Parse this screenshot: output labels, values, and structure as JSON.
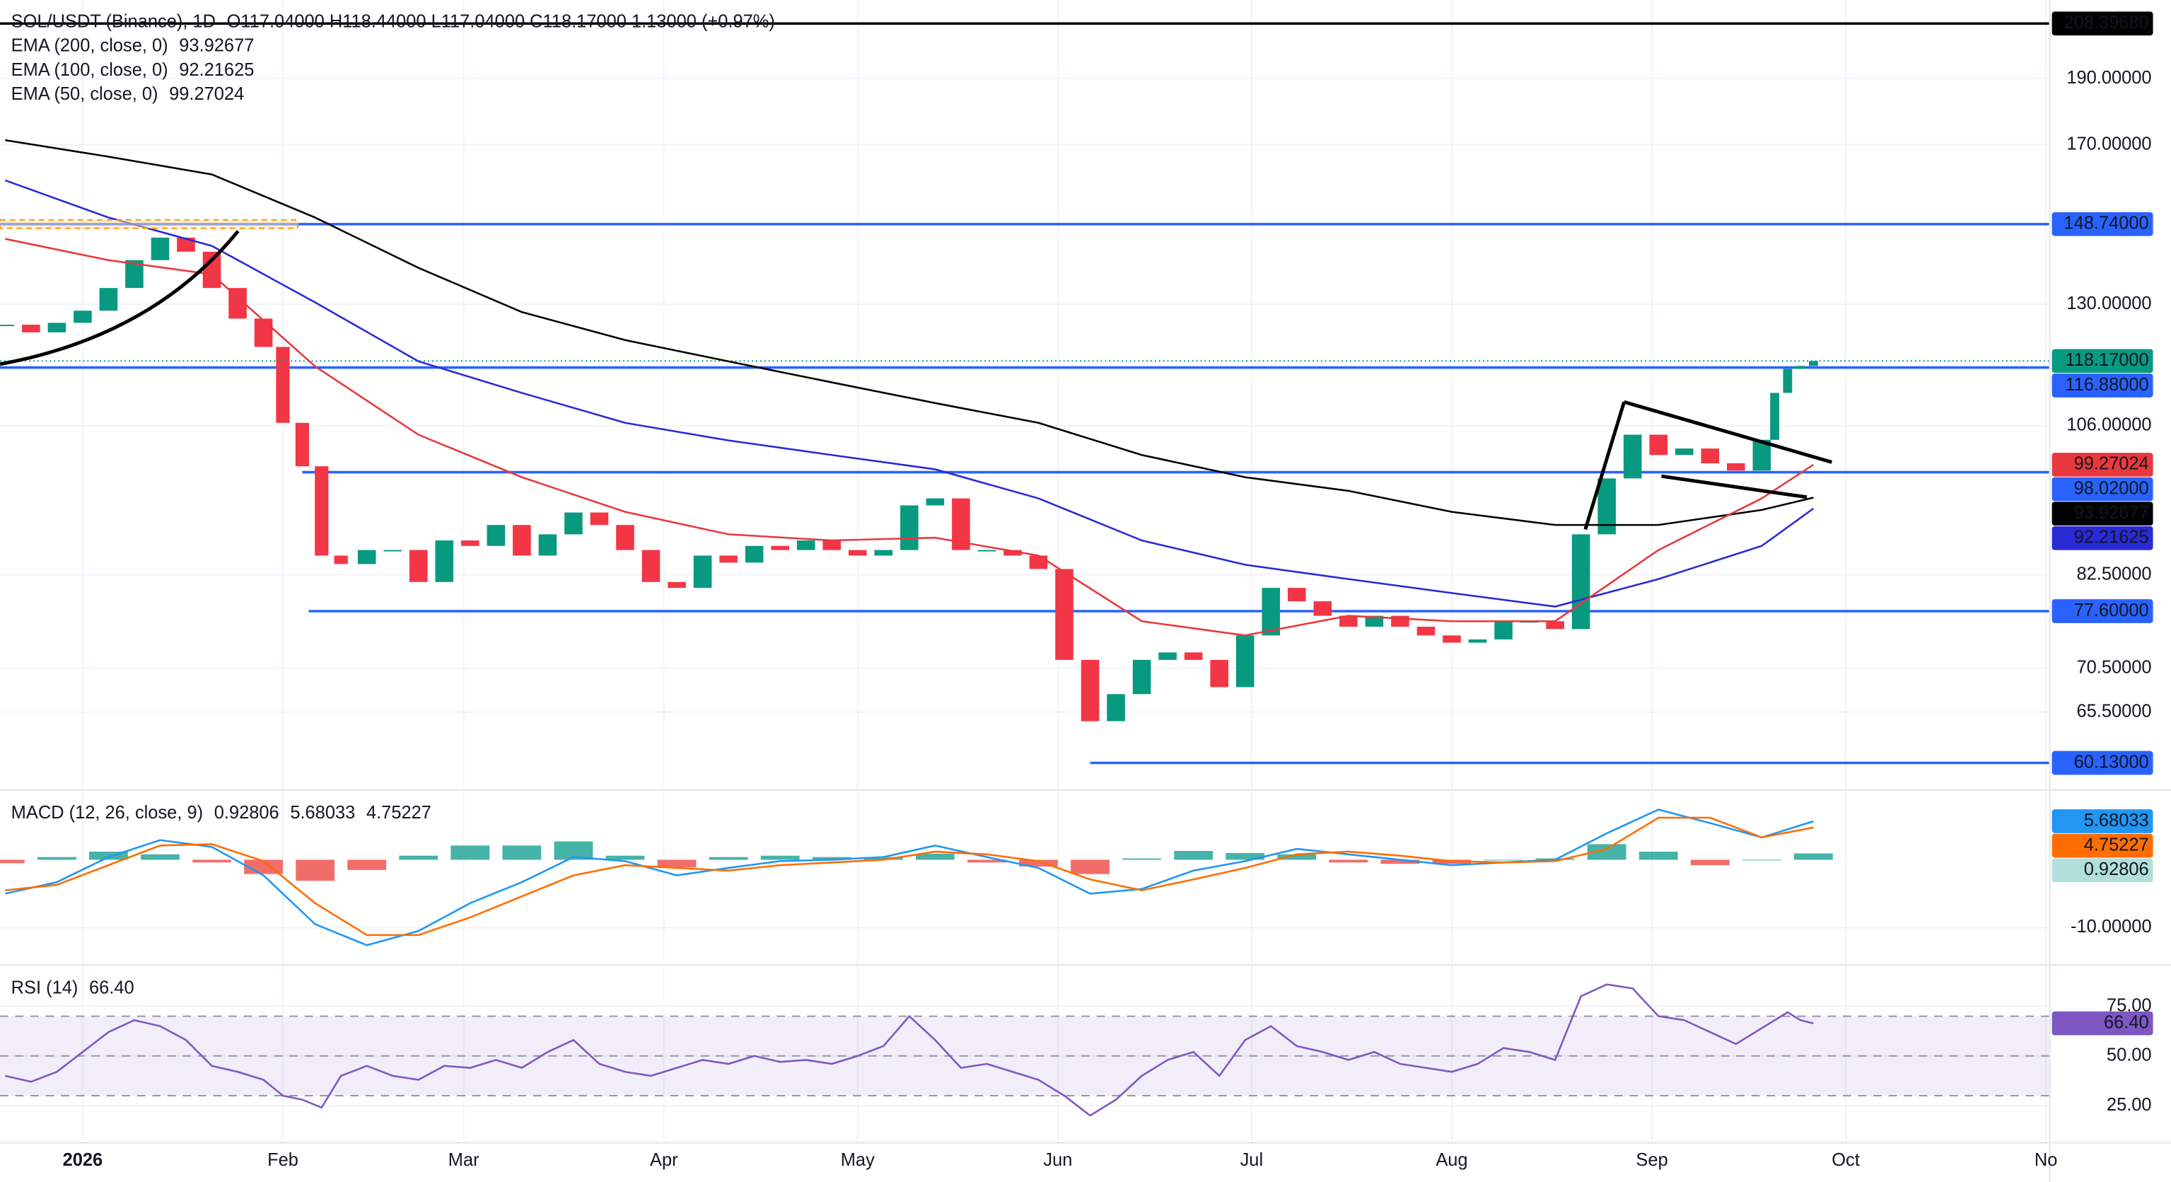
{
  "chart_data": [
    {
      "type": "candlestick",
      "title": "SOL/USDT (Binance), 1D",
      "subtitle": "O117.04000 H118.44000 L117.04000 C118.17000 1.13000 (+0.97%)",
      "log_scale": true,
      "grid": true,
      "xlim": [
        -12.8,
        304.5
      ],
      "ylim": [
        57.6,
        216.8
      ],
      "yticks": [
        {
          "value": 65.5,
          "label": "65.50000"
        },
        {
          "value": 70.5,
          "label": "70.50000"
        },
        {
          "value": 82.5,
          "label": "82.50000"
        },
        {
          "value": 106,
          "label": "106.00000"
        },
        {
          "value": 130,
          "label": "130.00000"
        },
        {
          "value": 170,
          "label": "170.00000"
        },
        {
          "value": 190,
          "label": "190.00000"
        }
      ],
      "series": [
        {
          "style": "candles",
          "colors": [
            "#089981",
            "#f23645"
          ],
          "color": "#089981",
          "x": [
            -12,
            -8,
            -4,
            0,
            4,
            8,
            12,
            16,
            20,
            24,
            28,
            31,
            34,
            37,
            40,
            44,
            48,
            52,
            56,
            60,
            64,
            68,
            72,
            76,
            80,
            84,
            88,
            92,
            96,
            100,
            104,
            108,
            112,
            116,
            120,
            124,
            128,
            132,
            136,
            140,
            144,
            148,
            152,
            156,
            160,
            164,
            168,
            172,
            176,
            180,
            184,
            188,
            192,
            196,
            200,
            204,
            208,
            212,
            216,
            220,
            224,
            228,
            232,
            236,
            240,
            244,
            248,
            252,
            256,
            260,
            262,
            264,
            266,
            268
          ],
          "values": [
            125.6,
            124,
            126,
            128.6,
            133.6,
            140,
            145.4,
            142,
            133.6,
            126.9,
            121,
            106.5,
            99,
            85.2,
            84,
            86,
            86,
            81.5,
            87.4,
            86.6,
            89.7,
            85.2,
            88.3,
            91.6,
            89.7,
            86,
            81.5,
            80.7,
            85.2,
            84.2,
            86.6,
            86,
            87.4,
            86,
            85.2,
            86,
            92.7,
            93.8,
            86,
            86,
            85.2,
            83.3,
            71.5,
            64.5,
            67.5,
            71.5,
            72.4,
            71.5,
            68.3,
            74.5,
            80.7,
            78.9,
            77,
            75.6,
            77,
            75.6,
            74.5,
            73.6,
            74,
            76.3,
            76.3,
            75.3,
            88.3,
            97,
            104.4,
            100.9,
            102,
            99.5,
            98.3,
            103.5,
            112,
            116.6,
            117.2,
            118.17
          ],
          "value_label": "118.17000"
        },
        {
          "name": "EMA (200, close, 0)",
          "color": "#000000",
          "x": [
            -12,
            4,
            20,
            36,
            52,
            68,
            84,
            100,
            116,
            132,
            148,
            164,
            180,
            196,
            212,
            228,
            244,
            260,
            268
          ],
          "values": [
            171.3,
            166.6,
            161.7,
            150.4,
            138.2,
            128.3,
            122.4,
            118.1,
            114,
            110.1,
            106.5,
            100.9,
            97.2,
            95,
            91.7,
            89.7,
            89.7,
            92,
            93.92677
          ],
          "value_label": "93.92677"
        },
        {
          "name": "EMA (100, close, 0)",
          "color": "#2a2ad6",
          "x": [
            -12,
            4,
            20,
            36,
            52,
            68,
            84,
            100,
            116,
            132,
            148,
            164,
            180,
            196,
            212,
            228,
            244,
            260,
            268
          ],
          "values": [
            160.1,
            150.4,
            143.4,
            130.4,
            118.1,
            112,
            106.5,
            103.4,
            100.9,
            98.5,
            93.8,
            87.4,
            83.9,
            81.9,
            80,
            78.2,
            81.9,
            86.6,
            92.21625
          ],
          "value_label": "92.21625"
        },
        {
          "name": "EMA (50, close, 0)",
          "color": "#e8383d",
          "x": [
            -12,
            4,
            20,
            36,
            52,
            68,
            84,
            100,
            116,
            132,
            148,
            164,
            180,
            196,
            212,
            228,
            244,
            260,
            268
          ],
          "values": [
            145.1,
            140,
            136.7,
            117.1,
            104.4,
            97.2,
            91.7,
            88.3,
            87.4,
            87.8,
            85.2,
            76.3,
            74.5,
            77,
            76.3,
            76.3,
            86,
            93.8,
            99.27024
          ],
          "value_label": "99.27024"
        }
      ],
      "levels": [
        {
          "value": 208.3968,
          "label": "208.39680",
          "color": "#000000"
        },
        {
          "value": 148.74,
          "label": "148.74000",
          "color": "#2962ff"
        },
        {
          "value": 116.88,
          "label": "116.88000",
          "color": "#2962ff"
        },
        {
          "value": 98.02,
          "label": "98.02000",
          "color": "#2962ff",
          "from": 34
        },
        {
          "value": 77.6,
          "label": "77.60000",
          "color": "#2962ff",
          "from": 35
        },
        {
          "value": 60.13,
          "label": "60.13000",
          "color": "#2962ff",
          "from": 156
        }
      ]
    },
    {
      "type": "line",
      "title": "MACD (12, 26, close, 9)",
      "grid": true,
      "xlim": [
        -12.8,
        304.5
      ],
      "ylim": [
        -15.3,
        10.1
      ],
      "yticks": [
        {
          "value": -10,
          "label": "-10.00000"
        }
      ],
      "series": [
        {
          "style": "histogram",
          "colors": [
            "#26a69a",
            "#ef5350"
          ],
          "color": "#b2dfdb",
          "x": [
            -12,
            -4,
            4,
            12,
            20,
            28,
            36,
            44,
            52,
            60,
            68,
            76,
            84,
            92,
            100,
            108,
            116,
            124,
            132,
            140,
            148,
            156,
            164,
            172,
            180,
            188,
            196,
            204,
            212,
            220,
            228,
            236,
            244,
            252,
            260,
            268
          ],
          "values": [
            -0.5,
            0.4,
            1.2,
            0.8,
            -0.4,
            -2.1,
            -3.1,
            -1.5,
            0.6,
            2.1,
            2.1,
            2.7,
            0.6,
            -1.1,
            0.4,
            0.6,
            0.4,
            0.4,
            0.9,
            -0.4,
            -1,
            -2.1,
            0.2,
            1.3,
            1,
            0.8,
            -0.4,
            -0.6,
            -0.6,
            0,
            0.2,
            2.3,
            1.2,
            -0.8,
            0,
            0.92806
          ],
          "value_label": "0.92806"
        },
        {
          "color": "#2196f3",
          "x": [
            -12,
            -4,
            4,
            12,
            20,
            28,
            36,
            44,
            52,
            60,
            68,
            76,
            84,
            92,
            100,
            108,
            116,
            124,
            132,
            140,
            148,
            156,
            164,
            172,
            180,
            188,
            196,
            204,
            212,
            220,
            228,
            236,
            244,
            252,
            260,
            268
          ],
          "values": [
            -5,
            -3.3,
            0.4,
            2.9,
            1.9,
            -2.3,
            -9.5,
            -12.6,
            -10.5,
            -6.4,
            -3.3,
            0.4,
            -0.2,
            -2.3,
            -1.2,
            -0.2,
            0,
            0.4,
            2.1,
            0.4,
            -1.2,
            -5,
            -4.3,
            -1.6,
            -0.2,
            1.6,
            0.8,
            0,
            -0.8,
            -0.4,
            0,
            3.9,
            7.4,
            5.4,
            3.3,
            5.68033
          ],
          "value_label": "5.68033"
        },
        {
          "color": "#ff6d00",
          "x": [
            -12,
            -4,
            4,
            12,
            20,
            28,
            36,
            44,
            52,
            60,
            68,
            76,
            84,
            92,
            100,
            108,
            116,
            124,
            132,
            140,
            148,
            156,
            164,
            172,
            180,
            188,
            196,
            204,
            212,
            220,
            228,
            236,
            244,
            252,
            260,
            268
          ],
          "values": [
            -4.5,
            -3.7,
            -0.8,
            2.1,
            2.3,
            -0.2,
            -6.4,
            -11.1,
            -11.1,
            -8.5,
            -5.4,
            -2.3,
            -0.8,
            -1.2,
            -1.6,
            -0.8,
            -0.4,
            0,
            1.2,
            0.8,
            -0.2,
            -2.9,
            -4.5,
            -2.9,
            -1.2,
            0.8,
            1.2,
            0.6,
            -0.2,
            -0.4,
            -0.2,
            1.6,
            6.2,
            6.2,
            3.3,
            4.75227
          ],
          "value_label": "4.75227"
        }
      ]
    },
    {
      "type": "line",
      "title": "RSI (14)",
      "grid": true,
      "xlim": [
        -12.8,
        304.5
      ],
      "ylim": [
        7,
        95.1
      ],
      "yticks": [
        {
          "value": 25,
          "label": "25.00"
        },
        {
          "value": 50,
          "label": "50.00"
        },
        {
          "value": 75,
          "label": "75.00"
        }
      ],
      "band": [
        30,
        70
      ],
      "levels": [
        30,
        50,
        70
      ],
      "band_color": "#7e57c2",
      "series": [
        {
          "color": "#7e57c2",
          "x": [
            -12,
            -8,
            -4,
            0,
            4,
            8,
            12,
            16,
            20,
            24,
            28,
            31,
            34,
            37,
            40,
            44,
            48,
            52,
            56,
            60,
            64,
            68,
            72,
            76,
            80,
            84,
            88,
            92,
            96,
            100,
            104,
            108,
            112,
            116,
            120,
            124,
            128,
            132,
            136,
            140,
            144,
            148,
            152,
            156,
            160,
            164,
            168,
            172,
            176,
            180,
            184,
            188,
            192,
            196,
            200,
            204,
            208,
            212,
            216,
            220,
            224,
            228,
            232,
            236,
            240,
            244,
            248,
            252,
            256,
            260,
            262,
            264,
            266,
            268
          ],
          "values": [
            40,
            37,
            42,
            52,
            62,
            68,
            65,
            58,
            45,
            42,
            38,
            30,
            28,
            24,
            40,
            45,
            40,
            38,
            45,
            44,
            48,
            44,
            52,
            58,
            46,
            42,
            40,
            44,
            48,
            46,
            50,
            47,
            48,
            46,
            50,
            55,
            70,
            58,
            44,
            46,
            42,
            38,
            30,
            20,
            28,
            40,
            48,
            52,
            40,
            58,
            65,
            55,
            52,
            48,
            52,
            46,
            44,
            42,
            46,
            54,
            52,
            48,
            80,
            86,
            84,
            70,
            68,
            62,
            56,
            64,
            68,
            72,
            68,
            66.4
          ],
          "value_label": "66.40"
        }
      ],
      "xticks": [
        {
          "value": 0,
          "label": "2026"
        },
        {
          "value": 31,
          "label": "Feb"
        },
        {
          "value": 59,
          "label": "Mar"
        },
        {
          "value": 90,
          "label": "Apr"
        },
        {
          "value": 120,
          "label": "May"
        },
        {
          "value": 151,
          "label": "Jun"
        },
        {
          "value": 181,
          "label": "Jul"
        },
        {
          "value": 212,
          "label": "Aug"
        },
        {
          "value": 243,
          "label": "Sep"
        },
        {
          "value": 273,
          "label": "Oct"
        },
        {
          "value": 304,
          "label": "No"
        }
      ]
    }
  ]
}
